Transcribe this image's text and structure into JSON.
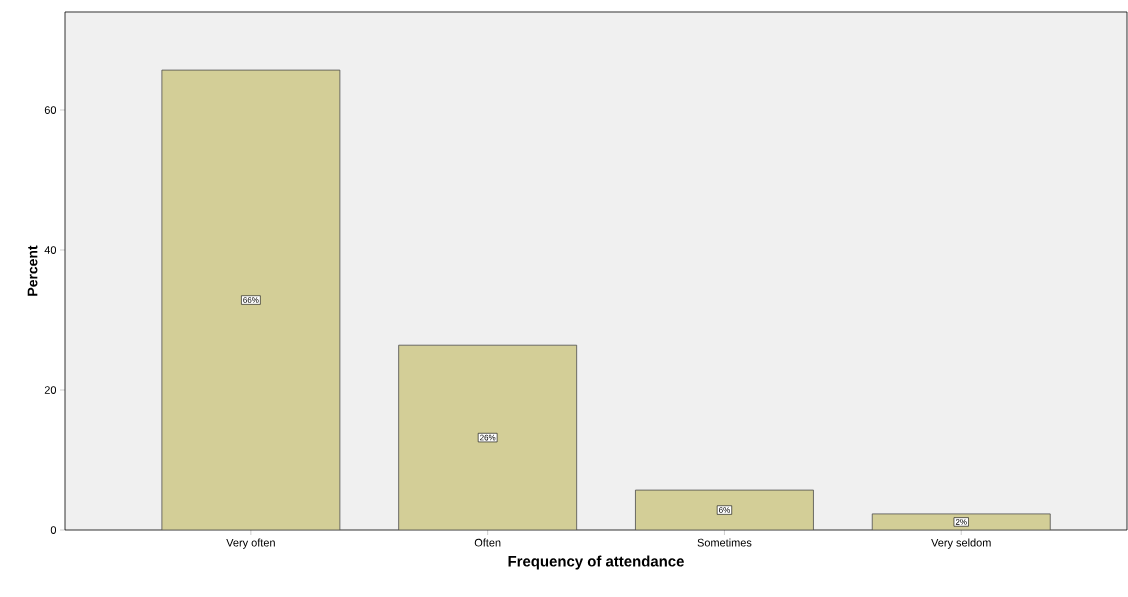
{
  "chart_data": {
    "type": "bar",
    "xlabel": "Frequency of attendance",
    "ylabel": "Percent",
    "categories": [
      "Very often",
      "Often",
      "Sometimes",
      "Very seldom"
    ],
    "values": [
      65.7,
      26.4,
      5.7,
      2.3
    ],
    "value_labels": [
      "66%",
      "26%",
      "6%",
      "2%"
    ],
    "color": "#d3ce97",
    "ylim": [
      0,
      74
    ],
    "yticks": [
      0,
      20,
      40,
      60
    ],
    "grid": false
  }
}
